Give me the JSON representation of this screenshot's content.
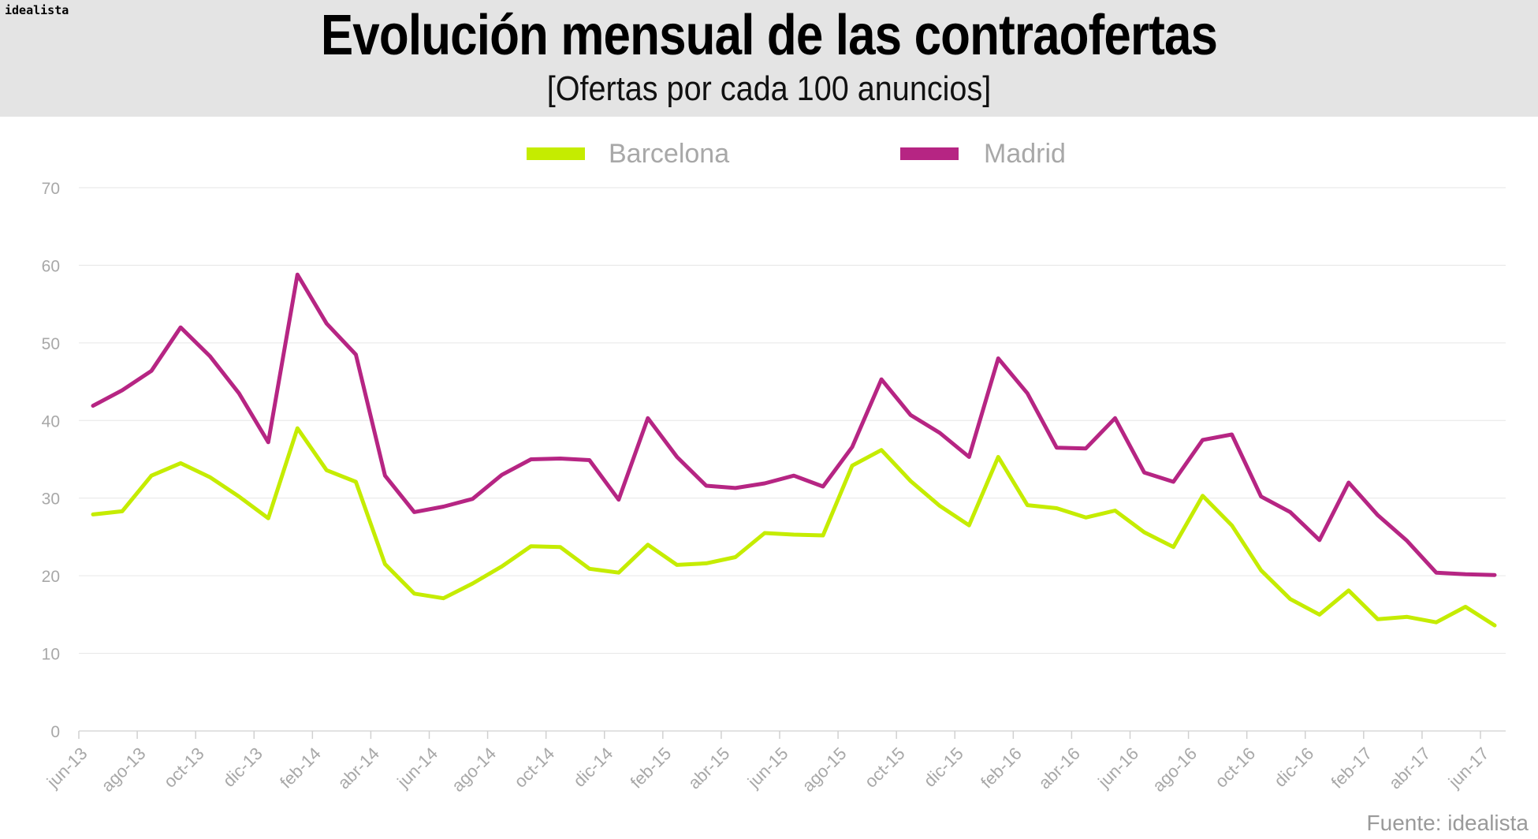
{
  "brand": "idealista",
  "source": "Fuente: idealista",
  "colors": {
    "barcelona": "#c5ec00",
    "madrid": "#b62583",
    "grid": "#e6e6e6",
    "axis_text": "#a8a8a8"
  },
  "chart_data": {
    "type": "line",
    "title": "Evolución mensual de las contraofertas",
    "subtitle": "[Ofertas por cada 100 anuncios]",
    "xlabel": "",
    "ylabel": "",
    "ylim": [
      0,
      70
    ],
    "yticks": [
      0,
      10,
      20,
      30,
      40,
      50,
      60,
      70
    ],
    "grid": true,
    "legend_position": "top-center",
    "x_tick_labels": [
      "jun-13",
      "ago-13",
      "oct-13",
      "dic-13",
      "feb-14",
      "abr-14",
      "jun-14",
      "ago-14",
      "oct-14",
      "dic-14",
      "feb-15",
      "abr-15",
      "jun-15",
      "ago-15",
      "oct-15",
      "dic-15",
      "feb-16",
      "abr-16",
      "jun-16",
      "ago-16",
      "oct-16",
      "dic-16",
      "feb-17",
      "abr-17",
      "jun-17"
    ],
    "series": [
      {
        "name": "Barcelona",
        "color": "#c5ec00",
        "values": [
          27.9,
          28.3,
          32.9,
          34.5,
          32.7,
          30.2,
          27.4,
          39.0,
          33.6,
          32.1,
          21.5,
          17.7,
          17.1,
          19.0,
          21.2,
          23.8,
          23.7,
          20.9,
          20.4,
          24.0,
          21.4,
          21.6,
          22.4,
          25.5,
          25.3,
          25.2,
          34.2,
          36.2,
          32.2,
          29.0,
          26.5,
          35.3,
          29.1,
          28.7,
          27.5,
          28.4,
          25.6,
          23.7,
          30.3,
          26.5,
          20.7,
          17.0,
          15.0,
          18.1,
          14.4,
          14.7,
          14.0,
          16.0,
          13.6
        ]
      },
      {
        "name": "Madrid",
        "color": "#b62583",
        "values": [
          41.9,
          43.9,
          46.4,
          52.0,
          48.3,
          43.5,
          37.2,
          58.8,
          52.5,
          48.5,
          32.9,
          28.2,
          28.9,
          29.9,
          33.0,
          35.0,
          35.1,
          34.9,
          29.8,
          40.3,
          35.3,
          31.6,
          31.3,
          31.9,
          32.9,
          31.5,
          36.6,
          45.3,
          40.7,
          38.4,
          35.3,
          48.0,
          43.5,
          36.5,
          36.4,
          40.3,
          33.3,
          32.1,
          37.5,
          38.2,
          30.2,
          28.2,
          24.6,
          32.0,
          27.8,
          24.5,
          20.4,
          20.2,
          20.1
        ]
      }
    ]
  }
}
